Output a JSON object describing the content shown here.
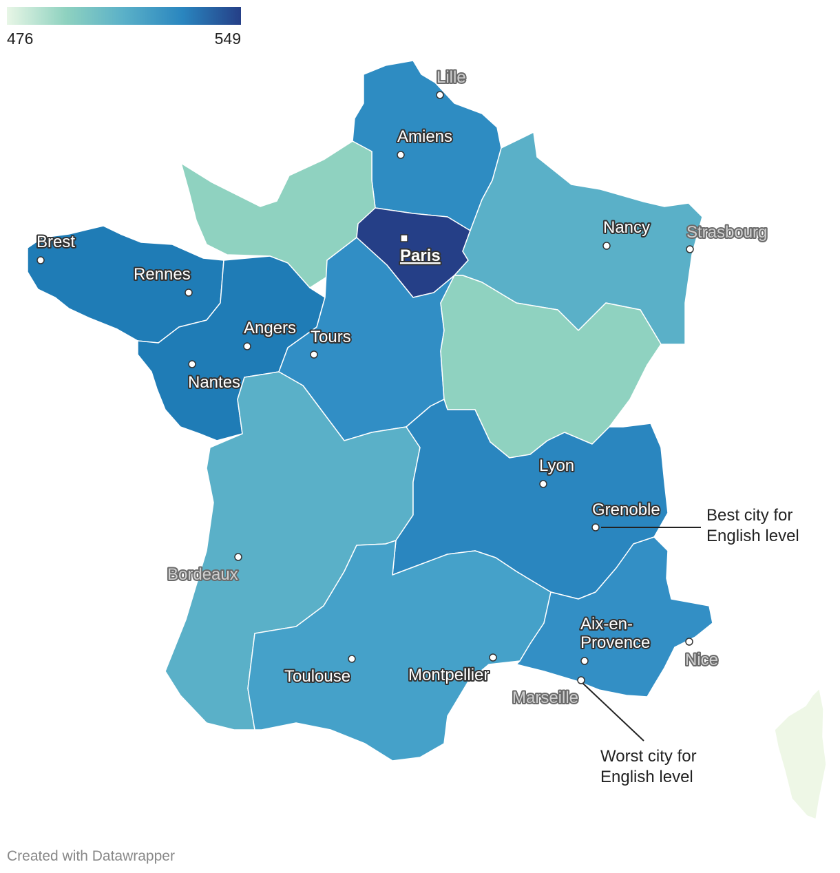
{
  "legend": {
    "min_label": "476",
    "max_label": "549",
    "min_value": 476,
    "max_value": 549,
    "colors": [
      "#e8f6e6",
      "#8fd2c0",
      "#5ab0c8",
      "#3090c4",
      "#1d6fb2",
      "#253f87"
    ]
  },
  "regions": [
    {
      "id": "hauts-de-france",
      "color": "#2e8cc2"
    },
    {
      "id": "normandie",
      "color": "#8fd2c0"
    },
    {
      "id": "ile-de-france",
      "color": "#253f87"
    },
    {
      "id": "grand-est",
      "color": "#5ab0c8"
    },
    {
      "id": "bretagne",
      "color": "#1f7cb6"
    },
    {
      "id": "pays-de-la-loire",
      "color": "#1f7cb6"
    },
    {
      "id": "centre-val-de-loire",
      "color": "#318ec5"
    },
    {
      "id": "bourgogne-franche-comte",
      "color": "#8fd2c0"
    },
    {
      "id": "nouvelle-aquitaine",
      "color": "#5ab0c8"
    },
    {
      "id": "auvergne-rhone-alpes",
      "color": "#2a86bf"
    },
    {
      "id": "occitanie",
      "color": "#45a1c9"
    },
    {
      "id": "provence-alpes-cote-azur",
      "color": "#338fc5"
    },
    {
      "id": "corse",
      "color": "#eef7e6"
    }
  ],
  "cities": [
    {
      "name": "Lille",
      "style": "gray"
    },
    {
      "name": "Amiens",
      "style": "white"
    },
    {
      "name": "Brest",
      "style": "white"
    },
    {
      "name": "Rennes",
      "style": "white"
    },
    {
      "name": "Nancy",
      "style": "white"
    },
    {
      "name": "Strasbourg",
      "style": "gray"
    },
    {
      "name": "Paris",
      "style": "capital"
    },
    {
      "name": "Angers",
      "style": "white"
    },
    {
      "name": "Tours",
      "style": "white"
    },
    {
      "name": "Nantes",
      "style": "white"
    },
    {
      "name": "Lyon",
      "style": "white"
    },
    {
      "name": "Grenoble",
      "style": "white"
    },
    {
      "name": "Bordeaux",
      "style": "gray"
    },
    {
      "name": "Aix-en-Provence",
      "style": "white"
    },
    {
      "name": "Nice",
      "style": "gray"
    },
    {
      "name": "Toulouse",
      "style": "white"
    },
    {
      "name": "Montpellier",
      "style": "white"
    },
    {
      "name": "Marseille",
      "style": "gray"
    }
  ],
  "annotations": {
    "best": [
      "Best city for",
      "English level"
    ],
    "worst": [
      "Worst city for",
      "English level"
    ]
  },
  "footer": "Created with Datawrapper"
}
